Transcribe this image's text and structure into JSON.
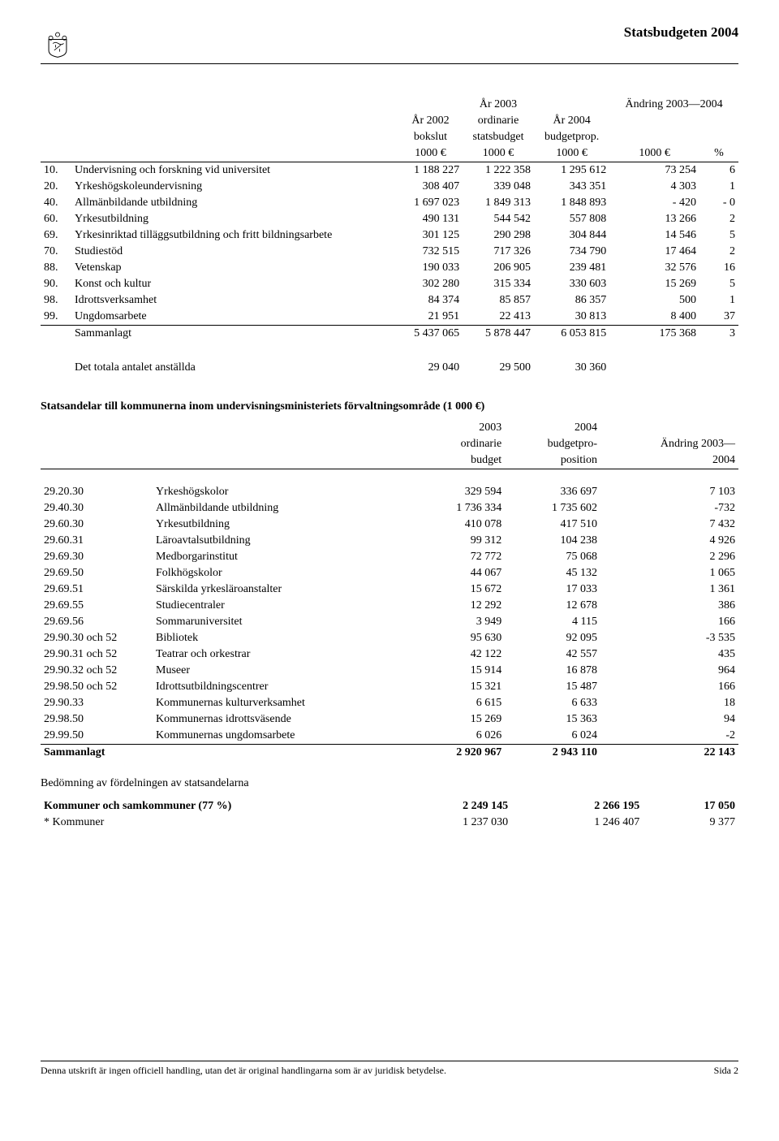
{
  "header": {
    "title": "Statsbudgeten 2004"
  },
  "table1": {
    "headers": {
      "col1": "År 2002\nbokslut\n1000 €",
      "col2": "År 2003\nordinarie\nstatsbudget\n1000 €",
      "col3": "År 2004\nbudgetprop.\n1000 €",
      "col4_top": "Ändring 2003—2004",
      "col4": "1000 €",
      "col5": "%"
    },
    "rows": [
      {
        "code": "10.",
        "label": "Undervisning och forskning vid universitet",
        "v1": "1 188 227",
        "v2": "1 222 358",
        "v3": "1 295 612",
        "v4": "73 254",
        "v5": "6"
      },
      {
        "code": "20.",
        "label": "Yrkeshögskoleundervisning",
        "v1": "308 407",
        "v2": "339 048",
        "v3": "343 351",
        "v4": "4 303",
        "v5": "1"
      },
      {
        "code": "40.",
        "label": "Allmänbildande utbildning",
        "v1": "1 697 023",
        "v2": "1 849 313",
        "v3": "1 848 893",
        "v4": "- 420",
        "v5": "- 0"
      },
      {
        "code": "60.",
        "label": "Yrkesutbildning",
        "v1": "490 131",
        "v2": "544 542",
        "v3": "557 808",
        "v4": "13 266",
        "v5": "2"
      },
      {
        "code": "69.",
        "label": "Yrkesinriktad tilläggsutbildning och fritt bildningsarbete",
        "v1": "301 125",
        "v2": "290 298",
        "v3": "304 844",
        "v4": "14 546",
        "v5": "5"
      },
      {
        "code": "70.",
        "label": "Studiestöd",
        "v1": "732 515",
        "v2": "717 326",
        "v3": "734 790",
        "v4": "17 464",
        "v5": "2"
      },
      {
        "code": "88.",
        "label": "Vetenskap",
        "v1": "190 033",
        "v2": "206 905",
        "v3": "239 481",
        "v4": "32 576",
        "v5": "16"
      },
      {
        "code": "90.",
        "label": "Konst och kultur",
        "v1": "302 280",
        "v2": "315 334",
        "v3": "330 603",
        "v4": "15 269",
        "v5": "5"
      },
      {
        "code": "98.",
        "label": "Idrottsverksamhet",
        "v1": "84 374",
        "v2": "85 857",
        "v3": "86 357",
        "v4": "500",
        "v5": "1"
      },
      {
        "code": "99.",
        "label": "Ungdomsarbete",
        "v1": "21 951",
        "v2": "22 413",
        "v3": "30 813",
        "v4": "8 400",
        "v5": "37"
      }
    ],
    "sum": {
      "label": "Sammanlagt",
      "v1": "5 437 065",
      "v2": "5 878 447",
      "v3": "6 053 815",
      "v4": "175 368",
      "v5": "3"
    },
    "extra": {
      "label": "Det totala antalet anställda",
      "v1": "29 040",
      "v2": "29 500",
      "v3": "30 360"
    }
  },
  "table2": {
    "title": "Statsandelar till kommunerna inom undervisningsministeriets förvaltningsområde (1 000 €)",
    "headers": {
      "c1": "2003\nordinarie\nbudget",
      "c2": "2004\nbudgetpro-\nposition",
      "c3": "Ändring 2003—\n2004"
    },
    "rows": [
      {
        "code": "29.20.30",
        "label": "Yrkeshögskolor",
        "v1": "329 594",
        "v2": "336 697",
        "v3": "7 103"
      },
      {
        "code": "29.40.30",
        "label": "Allmänbildande utbildning",
        "v1": "1 736 334",
        "v2": "1 735 602",
        "v3": "-732"
      },
      {
        "code": "29.60.30",
        "label": "Yrkesutbildning",
        "v1": "410 078",
        "v2": "417 510",
        "v3": "7 432"
      },
      {
        "code": "29.60.31",
        "label": "Läroavtalsutbildning",
        "v1": "99 312",
        "v2": "104 238",
        "v3": "4 926"
      },
      {
        "code": "29.69.30",
        "label": "Medborgarinstitut",
        "v1": "72 772",
        "v2": "75 068",
        "v3": "2 296"
      },
      {
        "code": "29.69.50",
        "label": "Folkhögskolor",
        "v1": "44 067",
        "v2": "45 132",
        "v3": "1 065"
      },
      {
        "code": "29.69.51",
        "label": "Särskilda yrkesläroanstalter",
        "v1": "15 672",
        "v2": "17 033",
        "v3": "1 361"
      },
      {
        "code": "29.69.55",
        "label": "Studiecentraler",
        "v1": "12 292",
        "v2": "12 678",
        "v3": "386"
      },
      {
        "code": "29.69.56",
        "label": "Sommaruniversitet",
        "v1": "3 949",
        "v2": "4 115",
        "v3": "166"
      },
      {
        "code": "29.90.30 och 52",
        "label": "Bibliotek",
        "v1": "95 630",
        "v2": "92 095",
        "v3": "-3 535"
      },
      {
        "code": "29.90.31 och 52",
        "label": "Teatrar och orkestrar",
        "v1": "42 122",
        "v2": "42 557",
        "v3": "435"
      },
      {
        "code": "29.90.32 och 52",
        "label": "Museer",
        "v1": "15 914",
        "v2": "16 878",
        "v3": "964"
      },
      {
        "code": "29.98.50 och 52",
        "label": "Idrottsutbildningscentrer",
        "v1": "15 321",
        "v2": "15 487",
        "v3": "166"
      },
      {
        "code": "29.90.33",
        "label": "Kommunernas kulturverksamhet",
        "v1": "6 615",
        "v2": "6 633",
        "v3": "18"
      },
      {
        "code": "29.98.50",
        "label": "Kommunernas idrottsväsende",
        "v1": "15 269",
        "v2": "15 363",
        "v3": "94"
      },
      {
        "code": "29.99.50",
        "label": "Kommunernas ungdomsarbete",
        "v1": "6 026",
        "v2": "6 024",
        "v3": "-2"
      }
    ],
    "sum": {
      "label": "Sammanlagt",
      "v1": "2 920 967",
      "v2": "2 943 110",
      "v3": "22 143"
    }
  },
  "table3": {
    "subhead": "Bedömning av fördelningen av statsandelarna",
    "rows": [
      {
        "label": "Kommuner och samkommuner (77 %)",
        "v1": "2 249 145",
        "v2": "2 266 195",
        "v3": "17 050",
        "bold": true
      },
      {
        "label": "* Kommuner",
        "v1": "1 237 030",
        "v2": "1 246 407",
        "v3": "9 377",
        "bold": false
      }
    ]
  },
  "footer": {
    "left": "Denna utskrift är ingen officiell handling, utan det är original handlingarna som är av juridisk betydelse.",
    "right": "Sida 2"
  }
}
